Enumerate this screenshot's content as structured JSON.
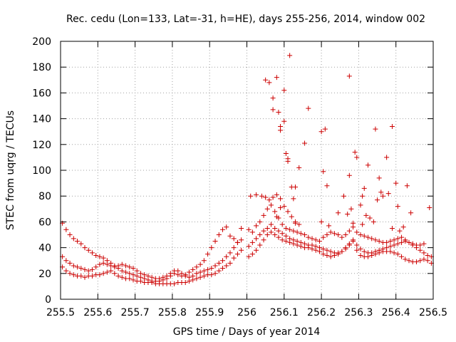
{
  "chart_data": {
    "type": "scatter",
    "title": "Rec. cedu (Lon=133, Lat=-31, h=HE), days 255-256, 2014, window 002",
    "xlabel": "GPS time / Days of year 2014",
    "ylabel": "STEC from uqrg / TECUs",
    "xlim": [
      255.5,
      256.5
    ],
    "ylim": [
      0,
      200
    ],
    "grid": true,
    "marker": "plus",
    "color": "#cc0000",
    "xticks": [
      {
        "value": 255.5,
        "label": "255.5"
      },
      {
        "value": 255.6,
        "label": "255.6"
      },
      {
        "value": 255.7,
        "label": "255.7"
      },
      {
        "value": 255.8,
        "label": "255.8"
      },
      {
        "value": 255.9,
        "label": "255.9"
      },
      {
        "value": 256.0,
        "label": "256"
      },
      {
        "value": 256.1,
        "label": "256.1"
      },
      {
        "value": 256.2,
        "label": "256.2"
      },
      {
        "value": 256.3,
        "label": "256.3"
      },
      {
        "value": 256.4,
        "label": "256.4"
      },
      {
        "value": 256.5,
        "label": "256.5"
      }
    ],
    "yticks": [
      {
        "value": 0,
        "label": "0"
      },
      {
        "value": 20,
        "label": "20"
      },
      {
        "value": 40,
        "label": "40"
      },
      {
        "value": 60,
        "label": "60"
      },
      {
        "value": 80,
        "label": "80"
      },
      {
        "value": 100,
        "label": "100"
      },
      {
        "value": 120,
        "label": "120"
      },
      {
        "value": 140,
        "label": "140"
      },
      {
        "value": 160,
        "label": "160"
      },
      {
        "value": 180,
        "label": "180"
      },
      {
        "value": 200,
        "label": "200"
      }
    ],
    "points": [
      [
        255.505,
        25
      ],
      [
        255.515,
        22
      ],
      [
        255.525,
        20
      ],
      [
        255.535,
        19
      ],
      [
        255.545,
        18
      ],
      [
        255.555,
        18
      ],
      [
        255.565,
        17
      ],
      [
        255.575,
        18
      ],
      [
        255.585,
        18
      ],
      [
        255.595,
        19
      ],
      [
        255.605,
        19
      ],
      [
        255.615,
        20
      ],
      [
        255.625,
        21
      ],
      [
        255.635,
        22
      ],
      [
        255.645,
        20
      ],
      [
        255.655,
        18
      ],
      [
        255.665,
        17
      ],
      [
        255.675,
        16
      ],
      [
        255.685,
        16
      ],
      [
        255.695,
        15
      ],
      [
        255.705,
        14
      ],
      [
        255.715,
        14
      ],
      [
        255.725,
        13
      ],
      [
        255.735,
        13
      ],
      [
        255.745,
        13
      ],
      [
        255.755,
        12
      ],
      [
        255.765,
        12
      ],
      [
        255.775,
        12
      ],
      [
        255.785,
        12
      ],
      [
        255.795,
        12
      ],
      [
        255.805,
        12
      ],
      [
        255.815,
        13
      ],
      [
        255.825,
        13
      ],
      [
        255.835,
        13
      ],
      [
        255.845,
        14
      ],
      [
        255.855,
        15
      ],
      [
        255.865,
        16
      ],
      [
        255.875,
        17
      ],
      [
        255.885,
        18
      ],
      [
        255.895,
        19
      ],
      [
        255.905,
        19
      ],
      [
        255.915,
        20
      ],
      [
        255.925,
        22
      ],
      [
        255.935,
        24
      ],
      [
        255.945,
        26
      ],
      [
        255.955,
        28
      ],
      [
        255.965,
        32
      ],
      [
        255.975,
        35
      ],
      [
        255.985,
        38
      ],
      [
        256.005,
        41
      ],
      [
        256.015,
        44
      ],
      [
        256.025,
        47
      ],
      [
        256.035,
        50
      ],
      [
        256.045,
        53
      ],
      [
        256.055,
        55
      ],
      [
        256.065,
        58
      ],
      [
        256.075,
        55
      ],
      [
        256.085,
        53
      ],
      [
        256.095,
        51
      ],
      [
        256.105,
        49
      ],
      [
        256.115,
        47
      ],
      [
        256.125,
        46
      ],
      [
        256.135,
        45
      ],
      [
        256.145,
        44
      ],
      [
        256.155,
        43
      ],
      [
        256.165,
        42
      ],
      [
        256.175,
        42
      ],
      [
        256.185,
        41
      ],
      [
        256.195,
        40
      ],
      [
        256.205,
        39
      ],
      [
        256.215,
        38
      ],
      [
        256.225,
        37
      ],
      [
        256.235,
        36
      ],
      [
        256.245,
        36
      ],
      [
        256.255,
        37
      ],
      [
        256.265,
        39
      ],
      [
        256.275,
        42
      ],
      [
        256.285,
        45
      ],
      [
        256.295,
        42
      ],
      [
        256.305,
        39
      ],
      [
        256.315,
        37
      ],
      [
        256.325,
        36
      ],
      [
        256.335,
        36
      ],
      [
        256.345,
        37
      ],
      [
        256.355,
        38
      ],
      [
        256.365,
        39
      ],
      [
        256.375,
        40
      ],
      [
        256.385,
        41
      ],
      [
        256.395,
        42
      ],
      [
        256.405,
        43
      ],
      [
        256.415,
        44
      ],
      [
        256.425,
        45
      ],
      [
        256.435,
        44
      ],
      [
        256.445,
        43
      ],
      [
        256.455,
        42
      ],
      [
        256.465,
        42
      ],
      [
        256.475,
        43
      ],
      [
        255.505,
        33
      ],
      [
        255.515,
        30
      ],
      [
        255.525,
        28
      ],
      [
        255.535,
        26
      ],
      [
        255.545,
        25
      ],
      [
        255.555,
        24
      ],
      [
        255.565,
        23
      ],
      [
        255.575,
        22
      ],
      [
        255.585,
        23
      ],
      [
        255.595,
        25
      ],
      [
        255.605,
        27
      ],
      [
        255.615,
        28
      ],
      [
        255.625,
        27
      ],
      [
        255.635,
        26
      ],
      [
        255.645,
        25
      ],
      [
        255.655,
        26
      ],
      [
        255.665,
        27
      ],
      [
        255.675,
        26
      ],
      [
        255.685,
        25
      ],
      [
        255.695,
        24
      ],
      [
        255.705,
        22
      ],
      [
        255.715,
        20
      ],
      [
        255.725,
        19
      ],
      [
        255.735,
        18
      ],
      [
        255.745,
        17
      ],
      [
        255.755,
        16
      ],
      [
        255.765,
        16
      ],
      [
        255.775,
        17
      ],
      [
        255.785,
        18
      ],
      [
        255.795,
        20
      ],
      [
        255.805,
        22
      ],
      [
        255.815,
        22
      ],
      [
        255.825,
        20
      ],
      [
        255.835,
        18
      ],
      [
        255.845,
        17
      ],
      [
        255.855,
        18
      ],
      [
        255.865,
        20
      ],
      [
        255.875,
        21
      ],
      [
        255.885,
        22
      ],
      [
        255.895,
        23
      ],
      [
        255.905,
        24
      ],
      [
        255.915,
        26
      ],
      [
        255.925,
        28
      ],
      [
        255.935,
        30
      ],
      [
        255.945,
        33
      ],
      [
        255.955,
        36
      ],
      [
        255.965,
        40
      ],
      [
        255.975,
        44
      ],
      [
        255.985,
        46
      ],
      [
        256.005,
        33
      ],
      [
        256.015,
        35
      ],
      [
        256.025,
        38
      ],
      [
        256.035,
        42
      ],
      [
        256.045,
        46
      ],
      [
        256.055,
        50
      ],
      [
        256.065,
        52
      ],
      [
        256.075,
        50
      ],
      [
        256.085,
        48
      ],
      [
        256.095,
        46
      ],
      [
        256.105,
        45
      ],
      [
        256.115,
        44
      ],
      [
        256.125,
        43
      ],
      [
        256.135,
        42
      ],
      [
        256.145,
        41
      ],
      [
        256.155,
        40
      ],
      [
        256.165,
        40
      ],
      [
        256.175,
        39
      ],
      [
        256.185,
        38
      ],
      [
        256.195,
        37
      ],
      [
        256.205,
        35
      ],
      [
        256.215,
        34
      ],
      [
        256.225,
        33
      ],
      [
        256.235,
        34
      ],
      [
        256.245,
        35
      ],
      [
        256.255,
        37
      ],
      [
        256.265,
        40
      ],
      [
        256.275,
        43
      ],
      [
        256.285,
        46
      ],
      [
        256.295,
        38
      ],
      [
        256.305,
        34
      ],
      [
        256.315,
        33
      ],
      [
        256.325,
        33
      ],
      [
        256.335,
        34
      ],
      [
        256.345,
        35
      ],
      [
        256.355,
        36
      ],
      [
        256.365,
        37
      ],
      [
        256.375,
        37
      ],
      [
        256.385,
        37
      ],
      [
        256.395,
        36
      ],
      [
        256.405,
        35
      ],
      [
        256.415,
        33
      ],
      [
        256.425,
        31
      ],
      [
        256.435,
        30
      ],
      [
        256.445,
        29
      ],
      [
        256.455,
        29
      ],
      [
        256.465,
        30
      ],
      [
        256.475,
        31
      ],
      [
        256.485,
        30
      ],
      [
        256.495,
        28
      ],
      [
        255.505,
        59
      ],
      [
        255.515,
        54
      ],
      [
        255.525,
        50
      ],
      [
        255.535,
        47
      ],
      [
        255.545,
        45
      ],
      [
        255.555,
        43
      ],
      [
        255.565,
        40
      ],
      [
        255.575,
        38
      ],
      [
        255.585,
        36
      ],
      [
        255.595,
        34
      ],
      [
        255.605,
        33
      ],
      [
        255.615,
        32
      ],
      [
        255.625,
        30
      ],
      [
        255.635,
        28
      ],
      [
        255.645,
        26
      ],
      [
        255.655,
        24
      ],
      [
        255.665,
        22
      ],
      [
        255.675,
        21
      ],
      [
        255.685,
        20
      ],
      [
        255.695,
        19
      ],
      [
        255.705,
        18
      ],
      [
        255.715,
        17
      ],
      [
        255.725,
        16
      ],
      [
        255.735,
        15
      ],
      [
        255.745,
        14
      ],
      [
        255.755,
        14
      ],
      [
        255.765,
        14
      ],
      [
        255.775,
        15
      ],
      [
        255.785,
        16
      ],
      [
        255.795,
        18
      ],
      [
        255.805,
        20
      ],
      [
        255.815,
        19
      ],
      [
        255.825,
        18
      ],
      [
        255.835,
        19
      ],
      [
        255.845,
        21
      ],
      [
        255.855,
        23
      ],
      [
        255.865,
        25
      ],
      [
        255.875,
        27
      ],
      [
        255.885,
        30
      ],
      [
        255.895,
        35
      ],
      [
        255.905,
        40
      ],
      [
        255.915,
        45
      ],
      [
        255.925,
        50
      ],
      [
        255.935,
        54
      ],
      [
        255.945,
        56
      ],
      [
        255.955,
        49
      ],
      [
        255.965,
        47
      ],
      [
        255.975,
        44
      ],
      [
        255.985,
        55
      ],
      [
        256.005,
        54
      ],
      [
        256.015,
        52
      ],
      [
        256.025,
        57
      ],
      [
        256.035,
        60
      ],
      [
        256.045,
        65
      ],
      [
        256.055,
        70
      ],
      [
        256.065,
        73
      ],
      [
        256.075,
        68
      ],
      [
        256.085,
        63
      ],
      [
        256.095,
        58
      ],
      [
        256.105,
        55
      ],
      [
        256.115,
        54
      ],
      [
        256.125,
        53
      ],
      [
        256.135,
        52
      ],
      [
        256.145,
        51
      ],
      [
        256.155,
        50
      ],
      [
        256.165,
        48
      ],
      [
        256.175,
        47
      ],
      [
        256.185,
        46
      ],
      [
        256.195,
        45
      ],
      [
        256.205,
        48
      ],
      [
        256.215,
        50
      ],
      [
        256.225,
        52
      ],
      [
        256.235,
        51
      ],
      [
        256.245,
        50
      ],
      [
        256.255,
        48
      ],
      [
        256.265,
        50
      ],
      [
        256.275,
        53
      ],
      [
        256.285,
        56
      ],
      [
        256.295,
        52
      ],
      [
        256.305,
        50
      ],
      [
        256.315,
        49
      ],
      [
        256.325,
        48
      ],
      [
        256.335,
        47
      ],
      [
        256.345,
        46
      ],
      [
        256.355,
        45
      ],
      [
        256.365,
        44
      ],
      [
        256.375,
        44
      ],
      [
        256.385,
        45
      ],
      [
        256.395,
        46
      ],
      [
        256.405,
        47
      ],
      [
        256.415,
        48
      ],
      [
        256.425,
        46
      ],
      [
        256.435,
        44
      ],
      [
        256.445,
        42
      ],
      [
        256.455,
        40
      ],
      [
        256.465,
        38
      ],
      [
        256.475,
        36
      ],
      [
        256.485,
        34
      ],
      [
        256.495,
        33
      ],
      [
        256.01,
        80
      ],
      [
        256.025,
        81
      ],
      [
        256.04,
        80
      ],
      [
        256.05,
        79
      ],
      [
        256.06,
        77
      ],
      [
        256.07,
        79
      ],
      [
        256.08,
        81
      ],
      [
        256.09,
        78
      ],
      [
        256.1,
        72
      ],
      [
        256.11,
        68
      ],
      [
        256.12,
        64
      ],
      [
        256.13,
        60
      ],
      [
        256.14,
        58
      ],
      [
        256.05,
        170
      ],
      [
        256.06,
        168
      ],
      [
        256.07,
        156
      ],
      [
        256.07,
        147
      ],
      [
        256.08,
        172
      ],
      [
        256.085,
        145
      ],
      [
        256.09,
        131
      ],
      [
        256.09,
        134
      ],
      [
        256.1,
        162
      ],
      [
        256.1,
        138
      ],
      [
        256.105,
        113
      ],
      [
        256.11,
        109
      ],
      [
        256.11,
        107
      ],
      [
        256.115,
        189
      ],
      [
        256.12,
        87
      ],
      [
        256.125,
        78
      ],
      [
        256.13,
        87
      ],
      [
        256.14,
        102
      ],
      [
        256.155,
        121
      ],
      [
        256.165,
        148
      ],
      [
        256.2,
        130
      ],
      [
        256.205,
        99
      ],
      [
        256.21,
        132
      ],
      [
        256.215,
        88
      ],
      [
        256.245,
        67
      ],
      [
        256.26,
        80
      ],
      [
        256.275,
        173
      ],
      [
        256.275,
        96
      ],
      [
        256.28,
        70
      ],
      [
        256.285,
        59
      ],
      [
        256.29,
        114
      ],
      [
        256.295,
        110
      ],
      [
        256.305,
        73
      ],
      [
        256.31,
        80
      ],
      [
        256.315,
        86
      ],
      [
        256.32,
        65
      ],
      [
        256.325,
        104
      ],
      [
        256.33,
        63
      ],
      [
        256.345,
        132
      ],
      [
        256.355,
        94
      ],
      [
        256.36,
        83
      ],
      [
        256.365,
        80
      ],
      [
        256.375,
        110
      ],
      [
        256.38,
        82
      ],
      [
        256.39,
        134
      ],
      [
        256.4,
        90
      ],
      [
        256.405,
        72
      ],
      [
        256.42,
        56
      ],
      [
        256.43,
        88
      ],
      [
        256.44,
        67
      ],
      [
        256.49,
        71
      ],
      [
        256.08,
        64
      ],
      [
        256.09,
        71
      ],
      [
        256.13,
        59
      ],
      [
        256.27,
        66
      ],
      [
        256.31,
        58
      ],
      [
        256.35,
        77
      ],
      [
        256.34,
        60
      ],
      [
        256.2,
        60
      ],
      [
        256.22,
        57
      ],
      [
        256.39,
        55
      ],
      [
        256.41,
        53
      ]
    ]
  }
}
